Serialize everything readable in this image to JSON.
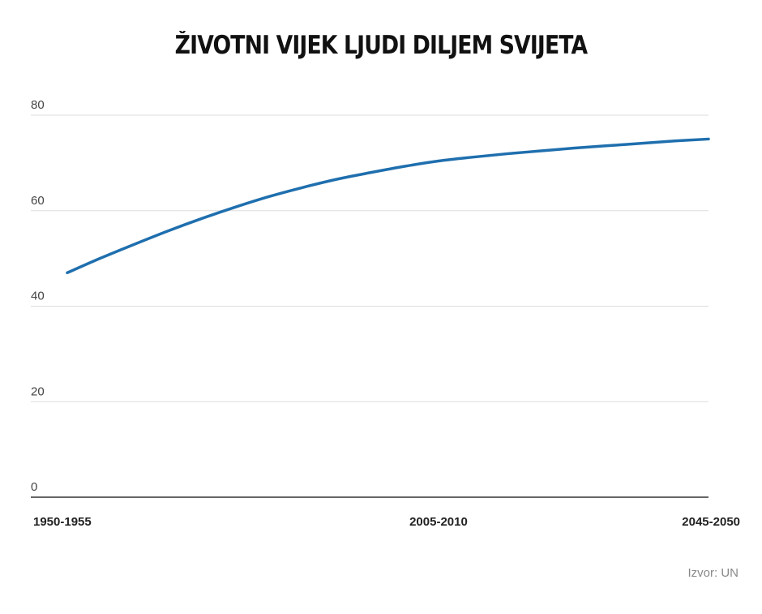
{
  "chart_data": {
    "type": "line",
    "title": "ŽIVOTNI VIJEK LJUDI DILJEM SVIJETA",
    "categories": [
      "1950-1955",
      "2005-2010",
      "2045-2050"
    ],
    "y_ticks": [
      0,
      20,
      40,
      60,
      80
    ],
    "ylim": [
      0,
      80
    ],
    "grid": true,
    "series": [
      {
        "color": "#1f6fae",
        "points": [
          {
            "x": 1952.5,
            "y": 47.0
          },
          {
            "x": 1957.5,
            "y": 50.1
          },
          {
            "x": 1962.5,
            "y": 53.0
          },
          {
            "x": 1967.5,
            "y": 55.8
          },
          {
            "x": 1972.5,
            "y": 58.4
          },
          {
            "x": 1977.5,
            "y": 60.8
          },
          {
            "x": 1982.5,
            "y": 63.0
          },
          {
            "x": 1987.5,
            "y": 64.9
          },
          {
            "x": 1992.5,
            "y": 66.6
          },
          {
            "x": 1997.5,
            "y": 68.0
          },
          {
            "x": 2002.5,
            "y": 69.3
          },
          {
            "x": 2007.5,
            "y": 70.4
          },
          {
            "x": 2012.5,
            "y": 71.2
          },
          {
            "x": 2017.5,
            "y": 71.9
          },
          {
            "x": 2022.5,
            "y": 72.5
          },
          {
            "x": 2027.5,
            "y": 73.1
          },
          {
            "x": 2032.5,
            "y": 73.6
          },
          {
            "x": 2037.5,
            "y": 74.1
          },
          {
            "x": 2042.5,
            "y": 74.6
          },
          {
            "x": 2047.5,
            "y": 75.0
          }
        ]
      }
    ],
    "category_positions": [
      1952.5,
      2007.5,
      2047.5
    ],
    "xlim": [
      1952.5,
      2047.5
    ]
  },
  "source": "Izvor: UN"
}
